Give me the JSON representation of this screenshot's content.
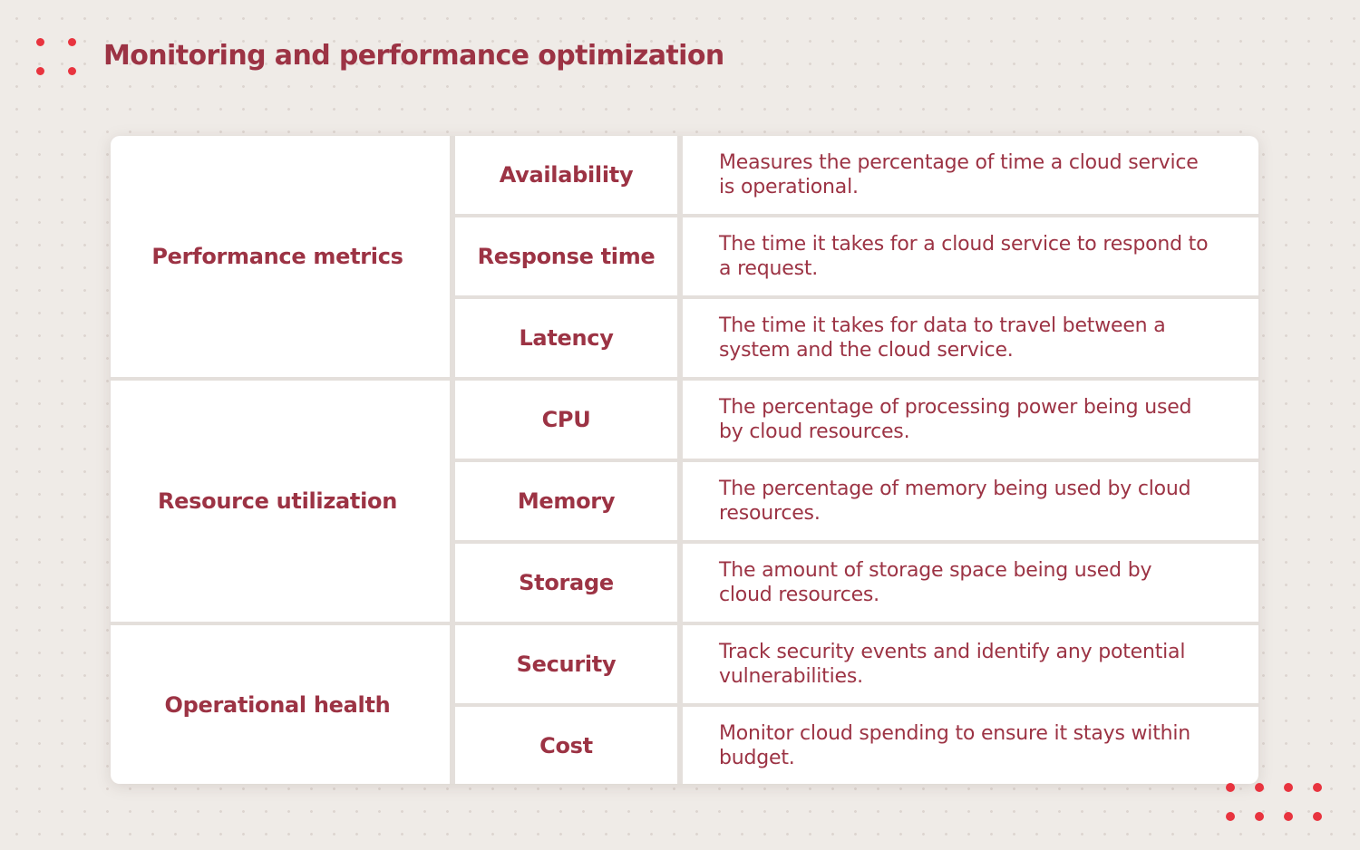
{
  "title": "Monitoring and performance optimization",
  "brand_color": "#9c3344",
  "accent_color": "#e8343f",
  "logo_icon": "four-dots-icon",
  "decoration_icon": "dot-grid-icon",
  "table": {
    "groups": [
      {
        "category": "Performance metrics",
        "rows": [
          {
            "metric": "Availability",
            "description": "Measures the percentage of time a cloud service is operational."
          },
          {
            "metric": "Response time",
            "description": "The time it takes for a cloud service to respond to a request."
          },
          {
            "metric": "Latency",
            "description": "The time it takes for data to travel between a system and the cloud service."
          }
        ]
      },
      {
        "category": "Resource utilization",
        "rows": [
          {
            "metric": "CPU",
            "description": "The percentage of processing power being used by cloud resources."
          },
          {
            "metric": "Memory",
            "description": "The percentage of memory being used by cloud resources."
          },
          {
            "metric": "Storage",
            "description": "The amount of storage space being used by cloud resources."
          }
        ]
      },
      {
        "category": "Operational health",
        "rows": [
          {
            "metric": "Security",
            "description": "Track security events and identify any potential vulnerabilities."
          },
          {
            "metric": "Cost",
            "description": "Monitor cloud spending to ensure it stays within budget."
          }
        ]
      }
    ]
  }
}
